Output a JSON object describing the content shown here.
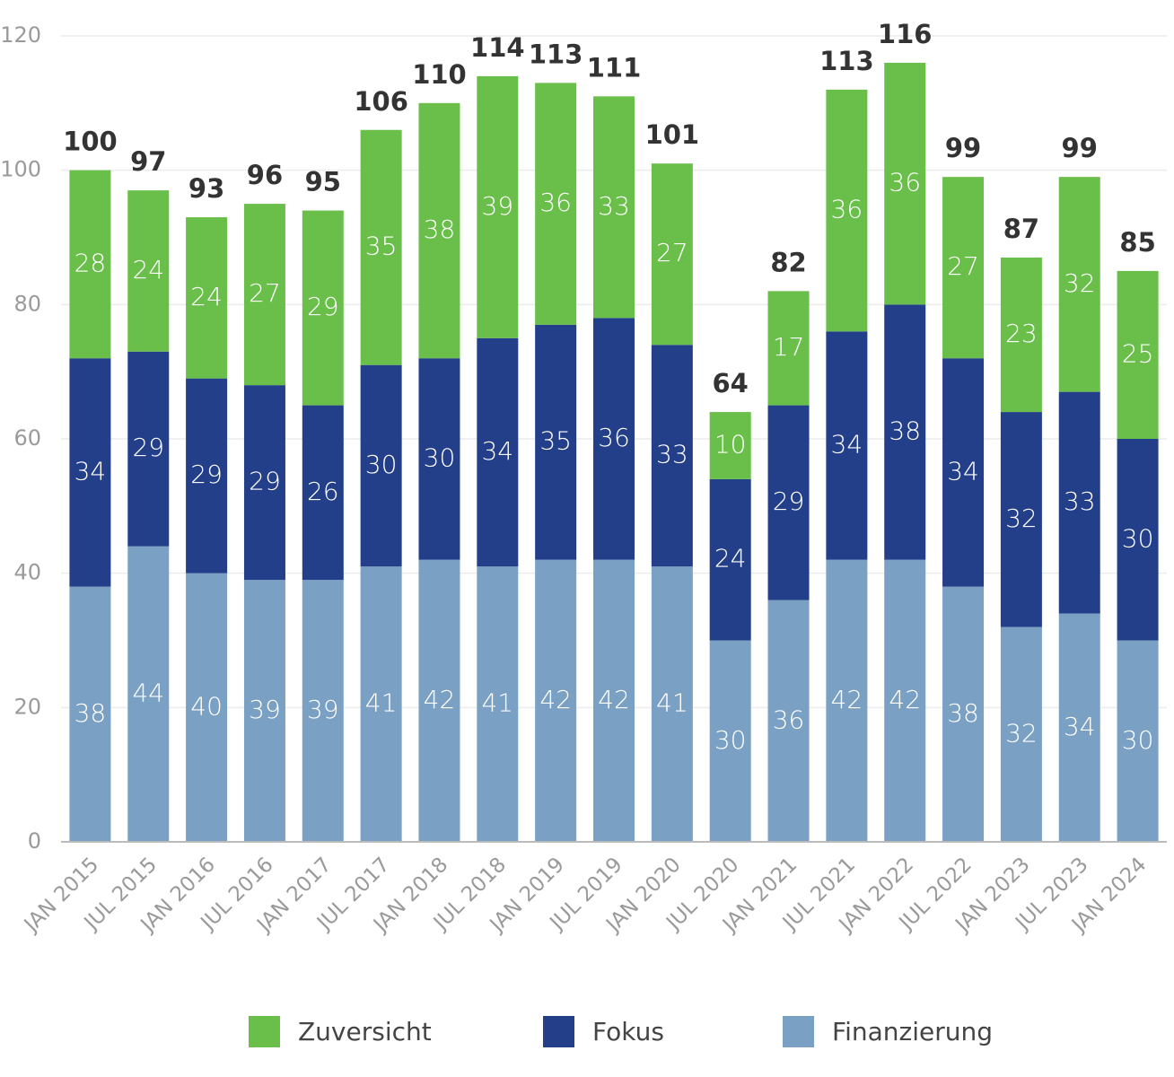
{
  "chart_data": {
    "type": "stacked_bar",
    "categories": [
      "JAN 2015",
      "JUL 2015",
      "JAN 2016",
      "JUL 2016",
      "JAN 2017",
      "JUL 2017",
      "JAN 2018",
      "JUL 2018",
      "JAN 2019",
      "JUL 2019",
      "JAN 2020",
      "JUL 2020",
      "JAN 2021",
      "JUL 2021",
      "JAN 2022",
      "JUL 2022",
      "JAN 2023",
      "JUL 2023",
      "JAN 2024"
    ],
    "series": [
      {
        "name": "Zuversicht",
        "color": "#6abf4b",
        "values": [
          28,
          24,
          24,
          27,
          29,
          35,
          38,
          39,
          36,
          33,
          27,
          10,
          17,
          36,
          36,
          27,
          23,
          32,
          25
        ]
      },
      {
        "name": "Fokus",
        "color": "#233f8a",
        "values": [
          34,
          29,
          29,
          29,
          26,
          30,
          30,
          34,
          35,
          36,
          33,
          24,
          29,
          34,
          38,
          34,
          32,
          33,
          30
        ]
      },
      {
        "name": "Finanzierung",
        "color": "#7aa0c4",
        "values": [
          38,
          44,
          40,
          39,
          39,
          41,
          42,
          41,
          42,
          42,
          41,
          30,
          36,
          42,
          42,
          38,
          32,
          34,
          30
        ]
      }
    ],
    "totals": [
      100,
      97,
      93,
      96,
      95,
      106,
      110,
      114,
      113,
      111,
      101,
      64,
      82,
      113,
      116,
      99,
      87,
      99,
      85
    ],
    "ylim": [
      0,
      120
    ],
    "yticks": [
      0,
      20,
      40,
      60,
      80,
      100,
      120
    ],
    "grid": true
  }
}
